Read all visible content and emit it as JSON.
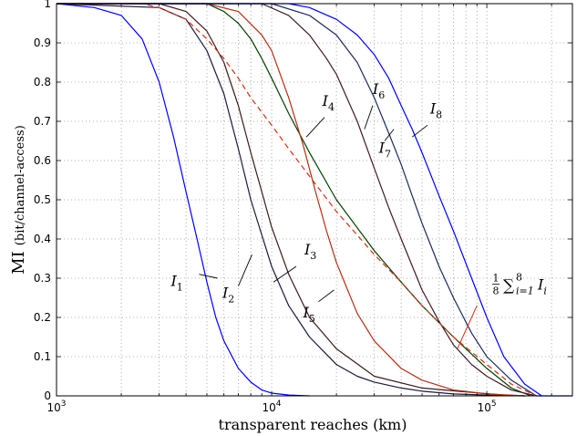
{
  "chart_data": {
    "type": "line",
    "xlabel": "transparent reaches (km)",
    "ylabel_main": "MI",
    "ylabel_unit": "(bit/channel-access)",
    "x_scale": "log",
    "xlim": [
      1000,
      250000
    ],
    "ylim": [
      0,
      1
    ],
    "grid": true,
    "x_ticks": [
      {
        "value": 1000,
        "base": "10",
        "exp": "3"
      },
      {
        "value": 10000,
        "base": "10",
        "exp": "4"
      },
      {
        "value": 100000,
        "base": "10",
        "exp": "5"
      }
    ],
    "y_ticks": [
      {
        "value": 0,
        "label": "0"
      },
      {
        "value": 0.1,
        "label": "0.1"
      },
      {
        "value": 0.2,
        "label": "0.2"
      },
      {
        "value": 0.3,
        "label": "0.3"
      },
      {
        "value": 0.4,
        "label": "0.4"
      },
      {
        "value": 0.5,
        "label": "0.5"
      },
      {
        "value": 0.6,
        "label": "0.6"
      },
      {
        "value": 0.7,
        "label": "0.7"
      },
      {
        "value": 0.8,
        "label": "0.8"
      },
      {
        "value": 0.9,
        "label": "0.9"
      },
      {
        "value": 1,
        "label": "1"
      }
    ],
    "series": [
      {
        "name": "I1",
        "label_base": "I",
        "label_sub": "1",
        "color": "#0000ff",
        "dash": "",
        "x": [
          1000,
          1500,
          2000,
          2500,
          3000,
          3500,
          4000,
          4500,
          5000,
          5500,
          6000,
          7000,
          8000,
          9000,
          10000,
          12000,
          15000
        ],
        "y": [
          1.0,
          0.99,
          0.97,
          0.91,
          0.8,
          0.66,
          0.52,
          0.4,
          0.29,
          0.2,
          0.14,
          0.07,
          0.035,
          0.015,
          0.007,
          0.002,
          0.0
        ]
      },
      {
        "name": "I2",
        "label_base": "I",
        "label_sub": "2",
        "color": "#1a1a3a",
        "dash": "",
        "x": [
          1000,
          3000,
          4000,
          5000,
          6000,
          7000,
          8000,
          9000,
          10000,
          12000,
          15000,
          20000,
          25000,
          30000,
          40000,
          50000,
          70000,
          100000,
          150000
        ],
        "y": [
          1.0,
          0.99,
          0.96,
          0.88,
          0.77,
          0.63,
          0.5,
          0.41,
          0.33,
          0.23,
          0.15,
          0.08,
          0.05,
          0.035,
          0.02,
          0.012,
          0.005,
          0.002,
          0.0
        ]
      },
      {
        "name": "I3",
        "label_base": "I",
        "label_sub": "3",
        "color": "#3a1a1a",
        "dash": "",
        "x": [
          1000,
          3000,
          4000,
          5000,
          6000,
          7000,
          8000,
          9000,
          10000,
          12000,
          15000,
          20000,
          30000,
          50000,
          80000,
          120000,
          150000
        ],
        "y": [
          1.0,
          1.0,
          0.98,
          0.93,
          0.85,
          0.74,
          0.62,
          0.52,
          0.43,
          0.31,
          0.2,
          0.12,
          0.05,
          0.02,
          0.01,
          0.002,
          0.0
        ]
      },
      {
        "name": "I4",
        "label_base": "I",
        "label_sub": "4",
        "color": "#004000",
        "dash": "",
        "x": [
          1000,
          5000,
          6000,
          7000,
          8000,
          9000,
          10000,
          12000,
          15000,
          20000,
          30000,
          40000,
          50000,
          70000,
          100000,
          130000,
          160000
        ],
        "y": [
          1.0,
          1.0,
          0.98,
          0.95,
          0.91,
          0.86,
          0.81,
          0.72,
          0.62,
          0.5,
          0.37,
          0.29,
          0.23,
          0.15,
          0.07,
          0.02,
          0.0
        ]
      },
      {
        "name": "I5",
        "label_base": "I",
        "label_sub": "5",
        "color": "#b03010",
        "dash": "",
        "x": [
          1000,
          5000,
          7000,
          9000,
          10000,
          12000,
          14000,
          16000,
          18000,
          20000,
          25000,
          30000,
          40000,
          50000,
          70000,
          100000,
          150000
        ],
        "y": [
          1.0,
          1.0,
          0.98,
          0.92,
          0.88,
          0.76,
          0.64,
          0.52,
          0.42,
          0.34,
          0.21,
          0.14,
          0.07,
          0.04,
          0.015,
          0.005,
          0.0
        ]
      },
      {
        "name": "I6",
        "label_base": "I",
        "label_sub": "6",
        "color": "#401a2a",
        "dash": "",
        "x": [
          1000,
          9000,
          12000,
          15000,
          18000,
          20000,
          25000,
          30000,
          35000,
          40000,
          50000,
          60000,
          70000,
          85000,
          100000,
          130000,
          170000
        ],
        "y": [
          1.0,
          1.0,
          0.97,
          0.92,
          0.86,
          0.82,
          0.7,
          0.58,
          0.48,
          0.4,
          0.27,
          0.19,
          0.13,
          0.08,
          0.05,
          0.015,
          0.0
        ]
      },
      {
        "name": "I7",
        "label_base": "I",
        "label_sub": "7",
        "color": "#1a2a5a",
        "dash": "",
        "x": [
          1000,
          10000,
          15000,
          20000,
          25000,
          30000,
          35000,
          40000,
          45000,
          50000,
          60000,
          70000,
          85000,
          100000,
          130000,
          170000
        ],
        "y": [
          1.0,
          1.0,
          0.97,
          0.92,
          0.85,
          0.76,
          0.67,
          0.59,
          0.51,
          0.44,
          0.33,
          0.25,
          0.16,
          0.1,
          0.04,
          0.0
        ]
      },
      {
        "name": "I8",
        "label_base": "I",
        "label_sub": "8",
        "color": "#0000ff",
        "dash": "",
        "x": [
          1000,
          12000,
          15000,
          20000,
          25000,
          30000,
          35000,
          40000,
          45000,
          50000,
          60000,
          70000,
          85000,
          100000,
          120000,
          150000,
          180000
        ],
        "y": [
          1.0,
          1.0,
          0.99,
          0.96,
          0.92,
          0.87,
          0.81,
          0.74,
          0.68,
          0.62,
          0.51,
          0.42,
          0.3,
          0.2,
          0.1,
          0.03,
          0.0
        ]
      },
      {
        "name": "avg",
        "color": "#d03010",
        "dash": "6,4",
        "x": [
          1000,
          2500,
          3000,
          4000,
          5000,
          6000,
          7000,
          8000,
          10000,
          12000,
          15000,
          20000,
          25000,
          30000,
          40000,
          50000,
          70000,
          100000,
          130000,
          170000
        ],
        "y": [
          1.0,
          1.0,
          0.99,
          0.96,
          0.91,
          0.86,
          0.81,
          0.76,
          0.69,
          0.63,
          0.56,
          0.47,
          0.41,
          0.36,
          0.29,
          0.23,
          0.15,
          0.08,
          0.03,
          0.0
        ]
      }
    ],
    "annotations": [
      {
        "series": "I1",
        "base": "I",
        "sub": "1",
        "text_at": [
          3400,
          0.28
        ],
        "line_from": [
          4600,
          0.31
        ],
        "line_to": [
          5600,
          0.3
        ]
      },
      {
        "series": "I2",
        "base": "I",
        "sub": "2",
        "text_at": [
          5900,
          0.25
        ],
        "line_from": [
          7000,
          0.28
        ],
        "line_to": [
          8100,
          0.36
        ]
      },
      {
        "series": "I3",
        "base": "I",
        "sub": "3",
        "text_at": [
          14200,
          0.36
        ],
        "line_from": [
          13000,
          0.33
        ],
        "line_to": [
          10200,
          0.29
        ]
      },
      {
        "series": "I4",
        "base": "I",
        "sub": "4",
        "text_at": [
          17200,
          0.74
        ],
        "line_from": [
          17600,
          0.71
        ],
        "line_to": [
          14500,
          0.66
        ]
      },
      {
        "series": "I5",
        "base": "I",
        "sub": "5",
        "text_at": [
          14000,
          0.2
        ],
        "line_from": [
          16500,
          0.24
        ],
        "line_to": [
          19500,
          0.27
        ]
      },
      {
        "series": "I6",
        "base": "I",
        "sub": "6",
        "text_at": [
          29500,
          0.77
        ],
        "line_from": [
          29500,
          0.74
        ],
        "line_to": [
          27000,
          0.68
        ]
      },
      {
        "series": "I7",
        "base": "I",
        "sub": "7",
        "text_at": [
          31500,
          0.62
        ],
        "line_from": [
          33500,
          0.65
        ],
        "line_to": [
          37000,
          0.68
        ]
      },
      {
        "series": "I8",
        "base": "I",
        "sub": "8",
        "text_at": [
          54500,
          0.72
        ],
        "line_from": [
          53000,
          0.69
        ],
        "line_to": [
          45000,
          0.66
        ]
      }
    ],
    "avg_annotation": {
      "frac_num": "1",
      "frac_den": "8",
      "sum": "∑",
      "sub": "i=1",
      "sup": "8",
      "base": "I",
      "term_sub": "i",
      "text_at": [
        106000,
        0.28
      ],
      "line_from": [
        90000,
        0.23
      ],
      "line_to": [
        73000,
        0.12
      ]
    }
  }
}
